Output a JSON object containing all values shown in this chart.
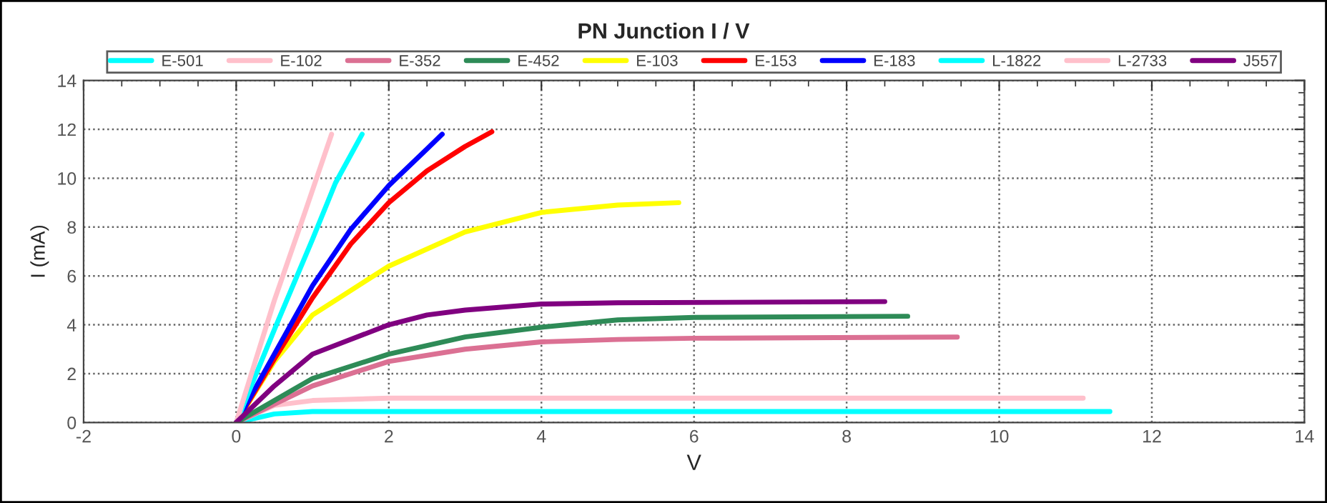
{
  "chart_data": {
    "type": "line",
    "title": "PN Junction I / V",
    "xlabel": "V",
    "ylabel": "I (mA)",
    "xlim": [
      -2,
      14
    ],
    "xticks": [
      -2,
      0,
      2,
      4,
      6,
      8,
      10,
      12,
      14
    ],
    "ylim": [
      0,
      14
    ],
    "yticks": [
      0,
      2,
      4,
      6,
      8,
      10,
      12,
      14
    ],
    "grid": true,
    "legend": "top",
    "marker": "none",
    "line_style": "solid",
    "series": [
      {
        "name": "E-501",
        "color": "#00ffff",
        "x": [
          0,
          0.5,
          1,
          2,
          11.45
        ],
        "values": [
          0,
          0.35,
          0.45,
          0.45,
          0.45
        ]
      },
      {
        "name": "E-102",
        "color": "#ffc0cb",
        "x": [
          0,
          0.5,
          1,
          2,
          11.1
        ],
        "values": [
          0,
          0.7,
          0.9,
          1.0,
          1.0
        ]
      },
      {
        "name": "E-352",
        "color": "#db7093",
        "x": [
          0,
          1,
          2,
          3,
          4,
          5,
          6,
          9.45
        ],
        "values": [
          0,
          1.5,
          2.5,
          3.0,
          3.3,
          3.4,
          3.45,
          3.5
        ]
      },
      {
        "name": "E-452",
        "color": "#2e8b57",
        "x": [
          0,
          1,
          2,
          3,
          4,
          5,
          6,
          8.8
        ],
        "values": [
          0,
          1.8,
          2.8,
          3.5,
          3.9,
          4.2,
          4.3,
          4.35
        ]
      },
      {
        "name": "E-103",
        "color": "#ffff00",
        "x": [
          0,
          0.5,
          1,
          2,
          3,
          4,
          5,
          5.8
        ],
        "values": [
          0,
          2.5,
          4.4,
          6.4,
          7.8,
          8.6,
          8.9,
          9.0
        ]
      },
      {
        "name": "E-153",
        "color": "#ff0000",
        "x": [
          0,
          0.5,
          1,
          1.5,
          2,
          2.5,
          3,
          3.35
        ],
        "values": [
          0,
          2.6,
          5.1,
          7.3,
          9.0,
          10.3,
          11.3,
          11.9
        ]
      },
      {
        "name": "E-183",
        "color": "#0000ff",
        "x": [
          0,
          0.5,
          1,
          1.5,
          2,
          2.5,
          2.7
        ],
        "values": [
          0,
          2.8,
          5.6,
          7.9,
          9.7,
          11.2,
          11.8
        ]
      },
      {
        "name": "L-1822",
        "color": "#00ffff",
        "x": [
          0,
          0.5,
          1,
          1.3,
          1.65
        ],
        "values": [
          0,
          3.8,
          7.5,
          9.8,
          11.8
        ]
      },
      {
        "name": "L-2733",
        "color": "#ffc0cb",
        "x": [
          0,
          0.5,
          0.9,
          1.25
        ],
        "values": [
          0,
          5,
          8.6,
          11.8
        ]
      },
      {
        "name": "J557",
        "color": "#800080",
        "x": [
          0,
          0.5,
          1,
          2,
          2.5,
          3,
          4,
          5,
          8.5
        ],
        "values": [
          0,
          1.5,
          2.8,
          4.0,
          4.4,
          4.6,
          4.85,
          4.9,
          4.95
        ]
      }
    ]
  }
}
